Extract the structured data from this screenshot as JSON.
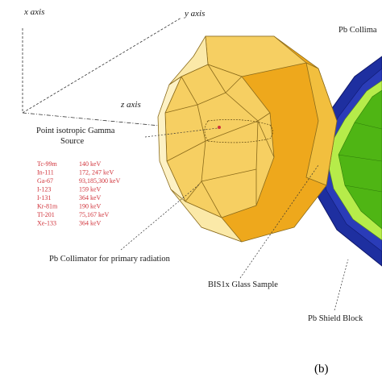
{
  "axes": {
    "x_label": "x axis",
    "y_label": "y axis",
    "z_label": "z axis"
  },
  "source": {
    "title_line1": "Point isotropic Gamma",
    "title_line2": "Source",
    "isotopes": [
      {
        "name": "Tc-99m",
        "energy": "140 keV"
      },
      {
        "name": "In-111",
        "energy": "172, 247 keV"
      },
      {
        "name": "Ga-67",
        "energy": "93,185,300 keV"
      },
      {
        "name": "I-123",
        "energy": "159 keV"
      },
      {
        "name": "I-131",
        "energy": "364 keV"
      },
      {
        "name": "Kr-81m",
        "energy": "190 keV"
      },
      {
        "name": "Tl-201",
        "energy": "75,167 keV"
      },
      {
        "name": "Xe-133",
        "energy": "364 keV"
      }
    ]
  },
  "labels": {
    "pb_collimator_top": "Pb Collima",
    "pb_collimator_primary": "Pb Collimator for primary radiation",
    "glass_sample": "BIS1x Glass Sample",
    "shield_block": "Pb Shield Block",
    "panel": "(b)"
  },
  "colors": {
    "collimator_light": "#fbe9a8",
    "collimator_mid": "#f6cf62",
    "collimator_dark": "#eea81c",
    "shield_blue": "#1e2fa0",
    "sample_green": "#4fb514",
    "sample_lightgreen": "#b6ec4a",
    "isotope_red": "#d0323a"
  }
}
